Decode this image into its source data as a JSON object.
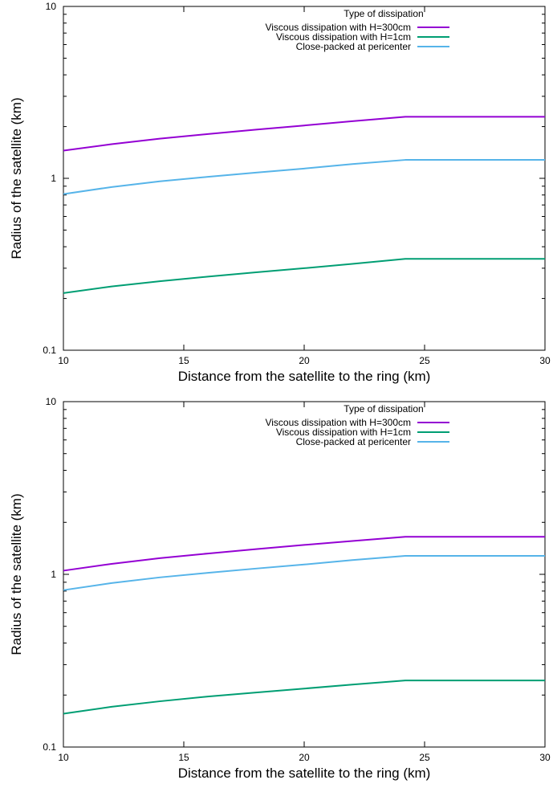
{
  "chart_data": [
    {
      "type": "line",
      "title": "",
      "xlabel": "Distance from the satellite to the ring (km)",
      "ylabel": "Radius of the satellite (km)",
      "xlim": [
        10,
        30
      ],
      "ylim": [
        0.1,
        10
      ],
      "yscale": "log",
      "grid": false,
      "x_ticks": [
        "10",
        "15",
        "20",
        "25",
        "30"
      ],
      "y_ticks": [
        "0.1",
        "1",
        "10"
      ],
      "legend": {
        "title": "Type of dissipation",
        "placement": "top-right"
      },
      "series": [
        {
          "name": "Viscous dissipation with H=300cm",
          "color": "#9400d3",
          "x": [
            10,
            12,
            14,
            16,
            18,
            20,
            22,
            24.2,
            26,
            28,
            30
          ],
          "y": [
            1.45,
            1.58,
            1.7,
            1.81,
            1.92,
            2.03,
            2.15,
            2.28,
            2.28,
            2.28,
            2.28
          ]
        },
        {
          "name": "Viscous dissipation with H=1cm",
          "color": "#009e73",
          "x": [
            10,
            12,
            14,
            16,
            18,
            20,
            22,
            24.2,
            26,
            28,
            30
          ],
          "y": [
            0.215,
            0.235,
            0.252,
            0.268,
            0.284,
            0.3,
            0.318,
            0.34,
            0.34,
            0.34,
            0.34
          ]
        },
        {
          "name": "Close-packed at pericenter",
          "color": "#56b4e9",
          "x": [
            10,
            12,
            14,
            16,
            18,
            20,
            22,
            24.2,
            26,
            28,
            30
          ],
          "y": [
            0.81,
            0.89,
            0.96,
            1.02,
            1.08,
            1.14,
            1.21,
            1.28,
            1.28,
            1.28,
            1.28
          ]
        }
      ]
    },
    {
      "type": "line",
      "title": "",
      "xlabel": "Distance from the satellite to the ring (km)",
      "ylabel": "Radius of the satellite (km)",
      "xlim": [
        10,
        30
      ],
      "ylim": [
        0.1,
        10
      ],
      "yscale": "log",
      "grid": false,
      "x_ticks": [
        "10",
        "15",
        "20",
        "25",
        "30"
      ],
      "y_ticks": [
        "0.1",
        "1",
        "10"
      ],
      "legend": {
        "title": "Type of dissipation",
        "placement": "top-right"
      },
      "series": [
        {
          "name": "Viscous dissipation with H=300cm",
          "color": "#9400d3",
          "x": [
            10,
            12,
            14,
            16,
            18,
            20,
            22,
            24.2,
            26,
            28,
            30
          ],
          "y": [
            1.05,
            1.15,
            1.24,
            1.32,
            1.4,
            1.48,
            1.56,
            1.65,
            1.65,
            1.65,
            1.65
          ]
        },
        {
          "name": "Viscous dissipation with H=1cm",
          "color": "#009e73",
          "x": [
            10,
            12,
            14,
            16,
            18,
            20,
            22,
            24.2,
            26,
            28,
            30
          ],
          "y": [
            0.156,
            0.171,
            0.184,
            0.196,
            0.207,
            0.218,
            0.23,
            0.243,
            0.243,
            0.243,
            0.243
          ]
        },
        {
          "name": "Close-packed at pericenter",
          "color": "#56b4e9",
          "x": [
            10,
            12,
            14,
            16,
            18,
            20,
            22,
            24.2,
            26,
            28,
            30
          ],
          "y": [
            0.81,
            0.89,
            0.96,
            1.02,
            1.08,
            1.14,
            1.21,
            1.28,
            1.28,
            1.28,
            1.28
          ]
        }
      ]
    }
  ]
}
